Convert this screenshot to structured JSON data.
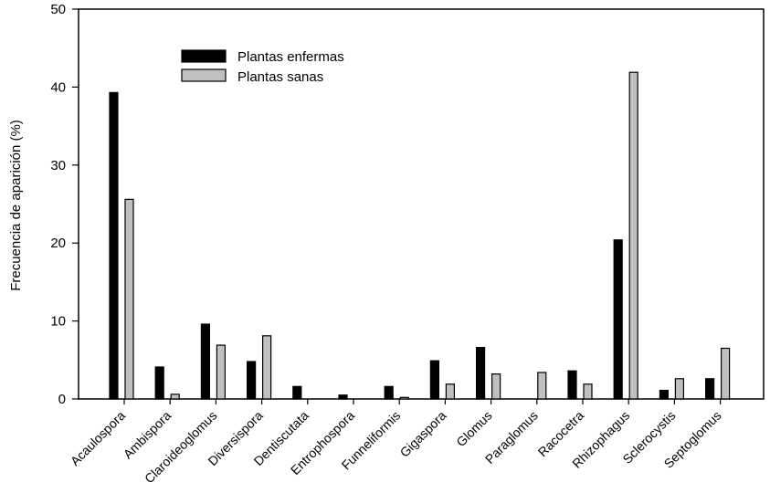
{
  "chart_data": {
    "type": "bar",
    "title": "",
    "xlabel": "",
    "ylabel": "Frecuencia de aparición (%)",
    "ylim": [
      0,
      50
    ],
    "yticks": [
      0,
      10,
      20,
      30,
      40,
      50
    ],
    "grid": false,
    "legend_position": "top-left",
    "categories": [
      "Acaulospora",
      "Ambispora",
      "Claroideoglomus",
      "Diversispora",
      "Dentiscutata",
      "Entrophospora",
      "Funneliformis",
      "Gigaspora",
      "Glomus",
      "Paraglomus",
      "Racocetra",
      "Rhizophagus",
      "Sclerocystis",
      "Septoglomus"
    ],
    "series": [
      {
        "name": "Plantas enfermas",
        "color": "#000000",
        "values": [
          39.3,
          4.1,
          9.6,
          4.8,
          1.6,
          0.5,
          1.6,
          4.9,
          6.6,
          0,
          3.6,
          20.4,
          1.1,
          2.6
        ]
      },
      {
        "name": "Plantas sanas",
        "color": "#c0c0c0",
        "values": [
          25.6,
          0.6,
          6.9,
          8.1,
          0,
          0,
          0.2,
          1.9,
          3.2,
          3.4,
          1.9,
          41.9,
          2.6,
          6.5
        ]
      }
    ]
  }
}
